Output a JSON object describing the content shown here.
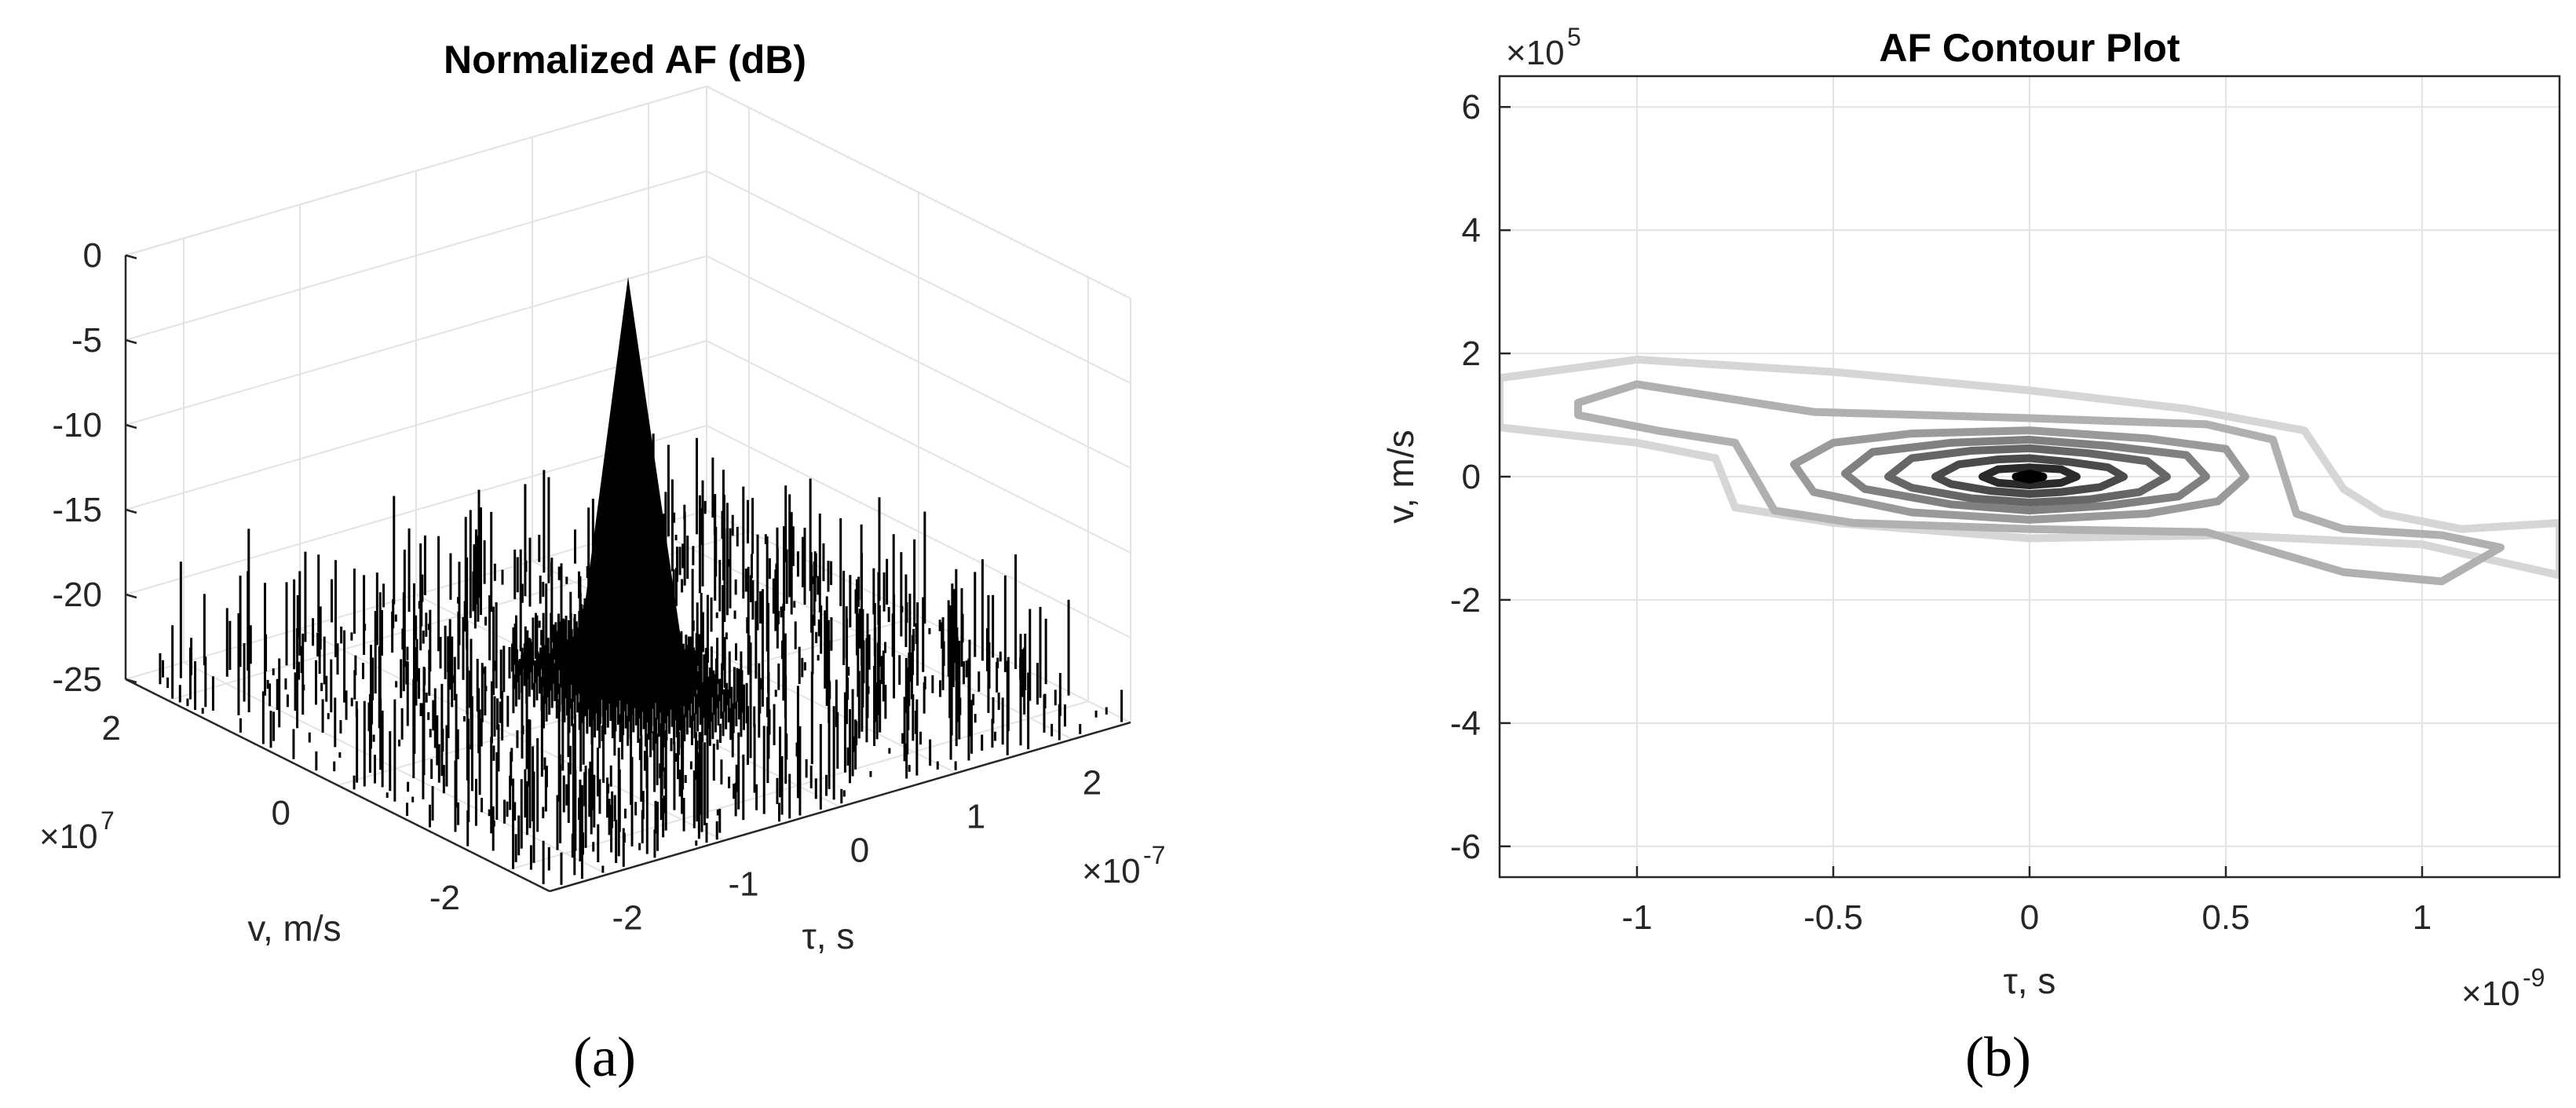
{
  "chart_data": [
    {
      "id": "a",
      "type": "surface3d",
      "title": "Normalized AF (dB)",
      "caption": "(a)",
      "xlabel": "τ, s",
      "ylabel": "v, m/s",
      "x_exponent": "×10",
      "x_exponent_power": "-7",
      "y_exponent": "×10",
      "y_exponent_power": "7",
      "x_ticks": [
        "-2",
        "-1",
        "0",
        "1",
        "2"
      ],
      "y_ticks": [
        "2",
        "0",
        "-2"
      ],
      "z_ticks": [
        "0",
        "-5",
        "-10",
        "-15",
        "-20",
        "-25"
      ],
      "xlim": [
        -2.5,
        2.5
      ],
      "ylim": [
        -2.5,
        2.5
      ],
      "zlim": [
        -25,
        0
      ],
      "grid": true,
      "peak": {
        "x": 0,
        "y": 0,
        "z": 0
      },
      "sidelobe_floor_db": -25,
      "sidelobe_max_db": -18,
      "color": "#000000"
    },
    {
      "id": "b",
      "type": "contour",
      "title": "AF Contour Plot",
      "caption": "(b)",
      "xlabel": "τ, s",
      "ylabel": "v, m/s",
      "x_exponent": "×10",
      "x_exponent_power": "-9",
      "y_exponent": "×10",
      "y_exponent_power": "5",
      "x_ticks": [
        "-1",
        "-0.5",
        "0",
        "0.5",
        "1"
      ],
      "y_ticks": [
        "6",
        "4",
        "2",
        "0",
        "-2",
        "-4",
        "-6"
      ],
      "xlim": [
        -1.35,
        1.35
      ],
      "ylim": [
        -6.5,
        6.5
      ],
      "grid": true,
      "contours": [
        {
          "level": 1,
          "color": "#d6d6d6",
          "points": [
            [
              -1.35,
              1.6
            ],
            [
              -1.0,
              1.9
            ],
            [
              -0.5,
              1.7
            ],
            [
              0.0,
              1.4
            ],
            [
              0.4,
              1.1
            ],
            [
              0.7,
              0.75
            ],
            [
              0.8,
              -0.2
            ],
            [
              0.9,
              -0.6
            ],
            [
              1.1,
              -0.85
            ],
            [
              1.35,
              -0.75
            ],
            [
              1.35,
              -1.6
            ],
            [
              1.0,
              -1.1
            ],
            [
              0.5,
              -0.95
            ],
            [
              0.0,
              -1.0
            ],
            [
              -0.5,
              -0.75
            ],
            [
              -0.75,
              -0.5
            ],
            [
              -0.8,
              0.3
            ],
            [
              -1.0,
              0.55
            ],
            [
              -1.35,
              0.8
            ]
          ]
        },
        {
          "level": 2,
          "color": "#b0b0b0",
          "points": [
            [
              -1.15,
              1.2
            ],
            [
              -1.0,
              1.5
            ],
            [
              -0.85,
              1.35
            ],
            [
              -0.55,
              1.05
            ],
            [
              0.0,
              0.95
            ],
            [
              0.45,
              0.85
            ],
            [
              0.62,
              0.6
            ],
            [
              0.68,
              -0.6
            ],
            [
              0.8,
              -0.85
            ],
            [
              1.05,
              -0.95
            ],
            [
              1.2,
              -1.15
            ],
            [
              1.05,
              -1.7
            ],
            [
              0.8,
              -1.55
            ],
            [
              0.45,
              -0.9
            ],
            [
              0.0,
              -0.85
            ],
            [
              -0.45,
              -0.75
            ],
            [
              -0.65,
              -0.55
            ],
            [
              -0.75,
              0.55
            ],
            [
              -0.95,
              0.75
            ],
            [
              -1.15,
              1.0
            ]
          ]
        },
        {
          "level": 3,
          "color": "#9a9a9a",
          "points": [
            [
              -0.6,
              0.2
            ],
            [
              -0.5,
              0.55
            ],
            [
              -0.3,
              0.7
            ],
            [
              0.0,
              0.75
            ],
            [
              0.3,
              0.62
            ],
            [
              0.5,
              0.45
            ],
            [
              0.55,
              0.0
            ],
            [
              0.48,
              -0.4
            ],
            [
              0.3,
              -0.6
            ],
            [
              0.0,
              -0.7
            ],
            [
              -0.3,
              -0.58
            ],
            [
              -0.55,
              -0.25
            ]
          ]
        },
        {
          "level": 4,
          "color": "#808080",
          "points": [
            [
              -0.47,
              0.05
            ],
            [
              -0.4,
              0.4
            ],
            [
              -0.2,
              0.55
            ],
            [
              0.0,
              0.6
            ],
            [
              0.2,
              0.5
            ],
            [
              0.4,
              0.35
            ],
            [
              0.45,
              0.0
            ],
            [
              0.38,
              -0.32
            ],
            [
              0.2,
              -0.47
            ],
            [
              0.0,
              -0.55
            ],
            [
              -0.2,
              -0.45
            ],
            [
              -0.42,
              -0.2
            ]
          ]
        },
        {
          "level": 5,
          "color": "#666666",
          "points": [
            [
              -0.36,
              0.0
            ],
            [
              -0.3,
              0.3
            ],
            [
              -0.15,
              0.42
            ],
            [
              0.0,
              0.46
            ],
            [
              0.15,
              0.38
            ],
            [
              0.3,
              0.25
            ],
            [
              0.35,
              0.0
            ],
            [
              0.28,
              -0.25
            ],
            [
              0.15,
              -0.37
            ],
            [
              0.0,
              -0.42
            ],
            [
              -0.15,
              -0.35
            ],
            [
              -0.3,
              -0.18
            ]
          ]
        },
        {
          "level": 6,
          "color": "#4a4a4a",
          "points": [
            [
              -0.24,
              0.0
            ],
            [
              -0.18,
              0.2
            ],
            [
              -0.08,
              0.28
            ],
            [
              0.0,
              0.3
            ],
            [
              0.1,
              0.24
            ],
            [
              0.2,
              0.15
            ],
            [
              0.24,
              0.0
            ],
            [
              0.18,
              -0.17
            ],
            [
              0.08,
              -0.25
            ],
            [
              0.0,
              -0.28
            ],
            [
              -0.1,
              -0.23
            ],
            [
              -0.2,
              -0.12
            ]
          ]
        },
        {
          "level": 7,
          "color": "#2a2a2a",
          "points": [
            [
              -0.12,
              0.0
            ],
            [
              -0.08,
              0.12
            ],
            [
              0.0,
              0.15
            ],
            [
              0.08,
              0.12
            ],
            [
              0.12,
              0.0
            ],
            [
              0.08,
              -0.1
            ],
            [
              0.0,
              -0.14
            ],
            [
              -0.08,
              -0.1
            ]
          ]
        },
        {
          "level": 8,
          "color": "#000000",
          "points": [
            [
              -0.035,
              0.0
            ],
            [
              0.0,
              0.05
            ],
            [
              0.035,
              0.0
            ],
            [
              0.0,
              -0.05
            ]
          ]
        }
      ]
    }
  ]
}
